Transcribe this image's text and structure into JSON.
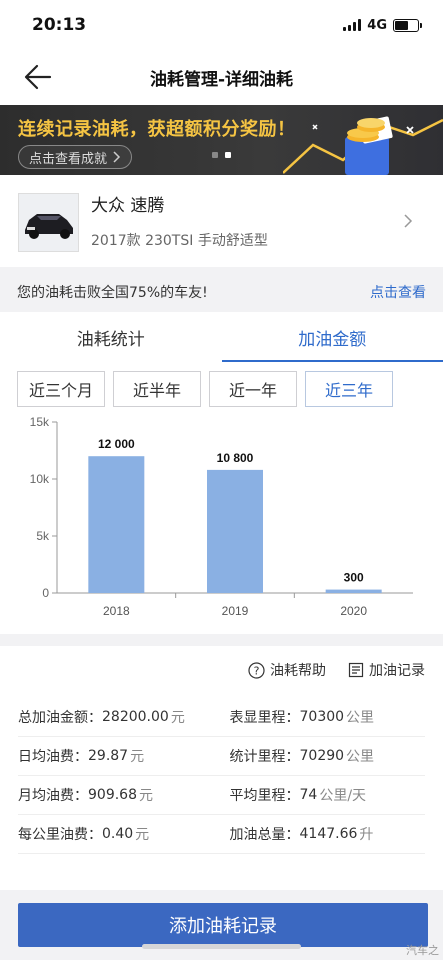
{
  "status": {
    "time": "20:13",
    "network": "4G"
  },
  "nav": {
    "title": "油耗管理-详细油耗"
  },
  "banner": {
    "title": "连续记录油耗，获超额积分奖励！",
    "button": "点击查看成就",
    "colors": {
      "title": "#f5c443"
    }
  },
  "car": {
    "name": "大众 速腾",
    "model": "2017款 230TSI 手动舒适型"
  },
  "rank": {
    "text": "您的油耗击败全国75%的车友!",
    "link": "点击查看"
  },
  "tabs": [
    {
      "label": "油耗统计",
      "active": false
    },
    {
      "label": "加油金额",
      "active": true
    }
  ],
  "ranges": [
    {
      "label": "近三个月",
      "active": false
    },
    {
      "label": "近半年",
      "active": false
    },
    {
      "label": "近一年",
      "active": false
    },
    {
      "label": "近三年",
      "active": true
    }
  ],
  "chart_data": {
    "type": "bar",
    "categories": [
      "2018",
      "2019",
      "2020"
    ],
    "values": [
      12000,
      10800,
      300
    ],
    "value_labels": [
      "12 000",
      "10 800",
      "300"
    ],
    "yticks": [
      "0",
      "5k",
      "10k",
      "15k"
    ],
    "ylim": [
      0,
      15000
    ],
    "bar_color": "#8ab0e3",
    "grid": false
  },
  "links": {
    "help": "油耗帮助",
    "records": "加油记录"
  },
  "stats": [
    {
      "label": "总加油金额：",
      "value": "28200.00",
      "unit": "元"
    },
    {
      "label": "表显里程：",
      "value": "70300",
      "unit": "公里"
    },
    {
      "label": "日均油费：",
      "value": "29.87",
      "unit": "元"
    },
    {
      "label": "统计里程：",
      "value": "70290",
      "unit": "公里"
    },
    {
      "label": "月均油费：",
      "value": "909.68",
      "unit": "元"
    },
    {
      "label": "平均里程：",
      "value": "74",
      "unit": "公里/天"
    },
    {
      "label": "每公里油费：",
      "value": "0.40",
      "unit": "元"
    },
    {
      "label": "加油总量：",
      "value": "4147.66",
      "unit": "升"
    }
  ],
  "bottom": {
    "add_button": "添加油耗记录",
    "watermark": "汽车之"
  },
  "colors": {
    "accent": "#2f6bcb",
    "button": "#3b68c1"
  }
}
